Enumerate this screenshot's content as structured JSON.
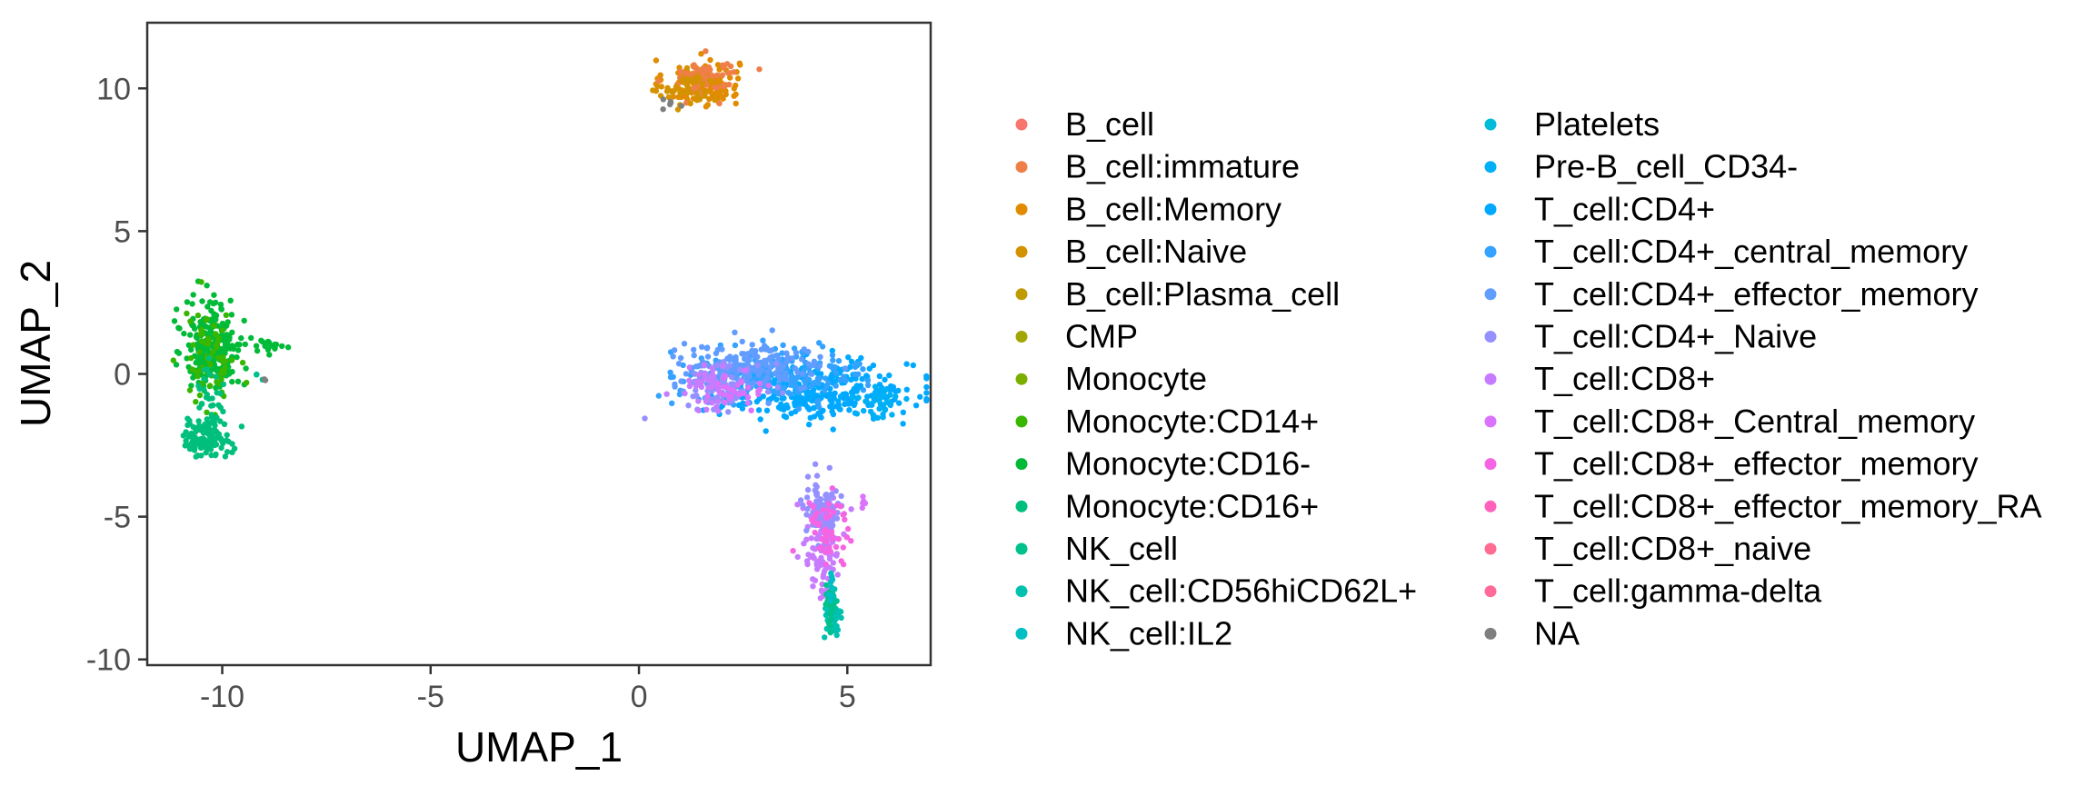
{
  "chart_data": {
    "type": "scatter",
    "title": "",
    "xlabel": "UMAP_1",
    "ylabel": "UMAP_2",
    "xlim": [
      -11.8,
      7.0
    ],
    "ylim": [
      -10.2,
      12.3
    ],
    "xticks": [
      -10,
      -5,
      0,
      5
    ],
    "yticks": [
      -10,
      -5,
      0,
      5,
      10
    ],
    "xtick_labels": [
      "-10",
      "-5",
      "0",
      "5"
    ],
    "ytick_labels": [
      "-10",
      "-5",
      "0",
      "5",
      "10"
    ],
    "grid": false,
    "legend_position": "right",
    "legend": [
      {
        "name": "B_cell",
        "color": "#F8766D"
      },
      {
        "name": "B_cell:immature",
        "color": "#EF7F48"
      },
      {
        "name": "B_cell:Memory",
        "color": "#E08B00"
      },
      {
        "name": "B_cell:Naive",
        "color": "#D39200"
      },
      {
        "name": "B_cell:Plasma_cell",
        "color": "#C09B00"
      },
      {
        "name": "CMP",
        "color": "#A3A500"
      },
      {
        "name": "Monocyte",
        "color": "#7CAE00"
      },
      {
        "name": "Monocyte:CD14+",
        "color": "#39B600"
      },
      {
        "name": "Monocyte:CD16-",
        "color": "#00BA38"
      },
      {
        "name": "Monocyte:CD16+",
        "color": "#00BF7D"
      },
      {
        "name": "NK_cell",
        "color": "#00C08B"
      },
      {
        "name": "NK_cell:CD56hiCD62L+",
        "color": "#00C0AF"
      },
      {
        "name": "NK_cell:IL2",
        "color": "#00BFC4"
      },
      {
        "name": "Platelets",
        "color": "#00BCD8"
      },
      {
        "name": "Pre-B_cell_CD34-",
        "color": "#00B0F6"
      },
      {
        "name": "T_cell:CD4+",
        "color": "#00A9FF"
      },
      {
        "name": "T_cell:CD4+_central_memory",
        "color": "#35A2FF"
      },
      {
        "name": "T_cell:CD4+_effector_memory",
        "color": "#619CFF"
      },
      {
        "name": "T_cell:CD4+_Naive",
        "color": "#9590FF"
      },
      {
        "name": "T_cell:CD8+",
        "color": "#C77CFF"
      },
      {
        "name": "T_cell:CD8+_Central_memory",
        "color": "#DB72FB"
      },
      {
        "name": "T_cell:CD8+_effector_memory",
        "color": "#F564E3"
      },
      {
        "name": "T_cell:CD8+_effector_memory_RA",
        "color": "#FF62BC"
      },
      {
        "name": "T_cell:CD8+_naive",
        "color": "#FF6C91"
      },
      {
        "name": "T_cell:gamma-delta",
        "color": "#FF6A98"
      },
      {
        "name": "NA",
        "color": "#7F7F7F"
      }
    ],
    "clusters": [
      {
        "label": "B_cell:Memory",
        "cx": 1.5,
        "cy": 10.2,
        "sx": 0.45,
        "sy": 0.4,
        "n": 140,
        "color": "#E08B00"
      },
      {
        "label": "B_cell:immature",
        "cx": 1.6,
        "cy": 10.4,
        "sx": 0.4,
        "sy": 0.35,
        "n": 60,
        "color": "#EF7F48"
      },
      {
        "label": "B_cell:Naive",
        "cx": 1.2,
        "cy": 9.9,
        "sx": 0.35,
        "sy": 0.3,
        "n": 40,
        "color": "#D39200"
      },
      {
        "label": "NA",
        "cx": 0.8,
        "cy": 9.5,
        "sx": 0.15,
        "sy": 0.1,
        "n": 6,
        "color": "#7F7F7F"
      },
      {
        "label": "Monocyte:CD16-",
        "cx": -10.2,
        "cy": 1.0,
        "sx": 0.35,
        "sy": 0.8,
        "n": 240,
        "color": "#00BA38"
      },
      {
        "label": "Monocyte:CD14+",
        "cx": -10.3,
        "cy": 0.5,
        "sx": 0.3,
        "sy": 0.9,
        "n": 70,
        "color": "#39B600"
      },
      {
        "label": "Monocyte:CD16-",
        "cx": -8.8,
        "cy": 1.0,
        "sx": 0.35,
        "sy": 0.1,
        "n": 18,
        "color": "#00BA38"
      },
      {
        "label": "Monocyte:CD16+",
        "cx": -10.4,
        "cy": -2.2,
        "sx": 0.3,
        "sy": 0.35,
        "n": 110,
        "color": "#00BF7D"
      },
      {
        "label": "Monocyte:CD16+",
        "cx": -10.3,
        "cy": -0.8,
        "sx": 0.15,
        "sy": 0.6,
        "n": 30,
        "color": "#00BF7D"
      },
      {
        "label": "NK_cell",
        "cx": -9.1,
        "cy": -0.1,
        "sx": 0.06,
        "sy": 0.08,
        "n": 3,
        "color": "#00C08B"
      },
      {
        "label": "NA",
        "cx": -9.0,
        "cy": -0.2,
        "sx": 0.05,
        "sy": 0.05,
        "n": 2,
        "color": "#7F7F7F"
      },
      {
        "label": "T_cell:CD4+",
        "cx": 4.2,
        "cy": -0.6,
        "sx": 1.2,
        "sy": 0.5,
        "n": 330,
        "color": "#00A9FF"
      },
      {
        "label": "T_cell:CD4+_central_memory",
        "cx": 3.2,
        "cy": 0.0,
        "sx": 1.1,
        "sy": 0.45,
        "n": 200,
        "color": "#35A2FF"
      },
      {
        "label": "T_cell:CD4+_effector_memory",
        "cx": 2.6,
        "cy": 0.2,
        "sx": 0.9,
        "sy": 0.4,
        "n": 170,
        "color": "#619CFF"
      },
      {
        "label": "T_cell:CD4+_Naive",
        "cx": 2.1,
        "cy": -0.3,
        "sx": 0.5,
        "sy": 0.45,
        "n": 60,
        "color": "#9590FF"
      },
      {
        "label": "T_cell:CD8+",
        "cx": 1.7,
        "cy": -0.4,
        "sx": 0.25,
        "sy": 0.35,
        "n": 40,
        "color": "#C77CFF"
      },
      {
        "label": "T_cell:CD8+_Central_memory",
        "cx": 2.2,
        "cy": -0.7,
        "sx": 0.4,
        "sy": 0.3,
        "n": 30,
        "color": "#DB72FB"
      },
      {
        "label": "Pre-B_cell_CD34-",
        "cx": 5.8,
        "cy": -1.0,
        "sx": 0.25,
        "sy": 0.3,
        "n": 40,
        "color": "#00B0F6"
      },
      {
        "label": "T_cell:CD8+",
        "cx": 4.4,
        "cy": -6.0,
        "sx": 0.22,
        "sy": 0.9,
        "n": 100,
        "color": "#C77CFF"
      },
      {
        "label": "T_cell:CD4+_Naive",
        "cx": 4.4,
        "cy": -4.7,
        "sx": 0.28,
        "sy": 0.6,
        "n": 70,
        "color": "#9590FF"
      },
      {
        "label": "T_cell:CD8+_effector_memory",
        "cx": 4.5,
        "cy": -5.4,
        "sx": 0.25,
        "sy": 0.8,
        "n": 50,
        "color": "#F564E3"
      },
      {
        "label": "T_cell:CD8+_Central_memory",
        "cx": 5.4,
        "cy": -4.6,
        "sx": 0.05,
        "sy": 0.15,
        "n": 5,
        "color": "#DB72FB"
      },
      {
        "label": "NK_cell:CD56hiCD62L+",
        "cx": 4.65,
        "cy": -8.5,
        "sx": 0.1,
        "sy": 0.45,
        "n": 50,
        "color": "#00C0AF"
      },
      {
        "label": "NK_cell",
        "cx": 4.6,
        "cy": -8.2,
        "sx": 0.08,
        "sy": 0.5,
        "n": 25,
        "color": "#00C08B"
      },
      {
        "label": "NK_cell:IL2",
        "cx": 4.6,
        "cy": -7.5,
        "sx": 0.05,
        "sy": 0.3,
        "n": 8,
        "color": "#00BFC4"
      }
    ]
  }
}
